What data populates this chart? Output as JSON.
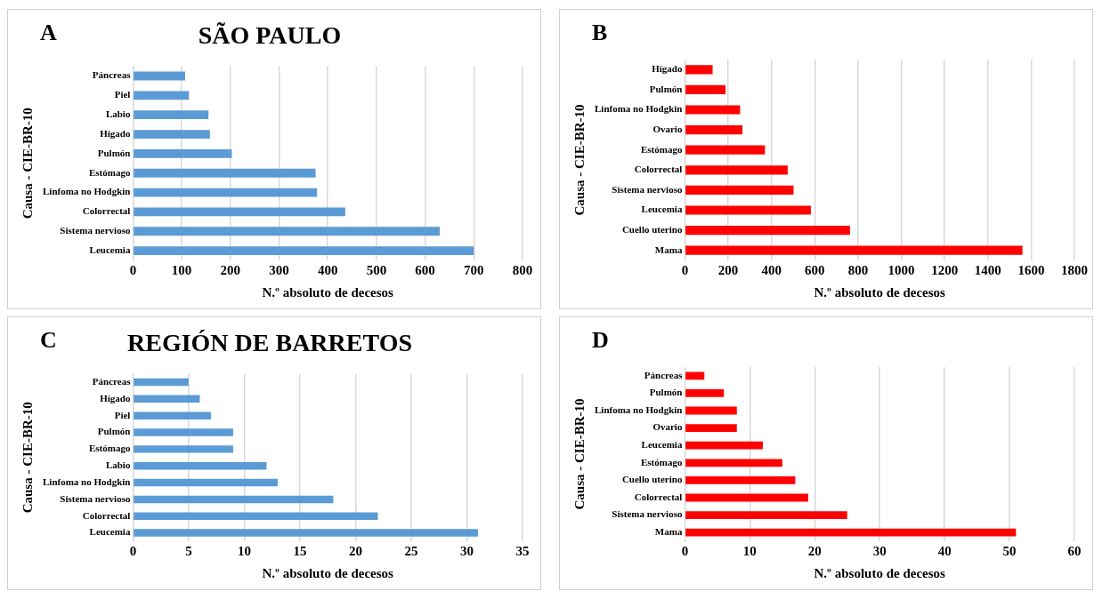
{
  "chart_data": [
    {
      "type": "bar",
      "orientation": "horizontal",
      "title": "SÃO PAULO",
      "annotations": [
        "A"
      ],
      "xlabel": "N.º absoluto de decesos",
      "ylabel": "Causa - CIE-BR-10",
      "categories": [
        "Páncreas",
        "Piel",
        "Labio",
        "Hígado",
        "Pulmón",
        "Estómago",
        "Linfoma no Hodgkin",
        "Colorrectal",
        "Sistema nervioso",
        "Leucemia"
      ],
      "values": [
        107,
        115,
        155,
        158,
        203,
        375,
        378,
        436,
        630,
        700
      ],
      "color": "#5b9bd5",
      "xlim": [
        0,
        800
      ],
      "xticks": [
        0,
        100,
        200,
        300,
        400,
        500,
        600,
        700,
        800
      ],
      "grid": "x"
    },
    {
      "type": "bar",
      "orientation": "horizontal",
      "annotations": [
        "B"
      ],
      "xlabel": "N.º absoluto de decesos",
      "ylabel": "Causa - CIE-BR-10",
      "categories": [
        "Hígado",
        "Pulmón",
        "Linfoma no Hodgkin",
        "Ovario",
        "Estómago",
        "Colorrectal",
        "Sistema nervioso",
        "Leucemia",
        "Cuello uterino",
        "Mama"
      ],
      "values": [
        128,
        188,
        255,
        266,
        370,
        475,
        502,
        582,
        763,
        1560
      ],
      "color": "#ff0000",
      "xlim": [
        0,
        1800
      ],
      "xticks": [
        0,
        200,
        400,
        600,
        800,
        1000,
        1200,
        1400,
        1600,
        1800
      ],
      "grid": "x"
    },
    {
      "type": "bar",
      "orientation": "horizontal",
      "title": "REGIÓN DE BARRETOS",
      "annotations": [
        "C"
      ],
      "xlabel": "N.º absoluto de decesos",
      "ylabel": "Causa - CIE-BR-10",
      "categories": [
        "Páncreas",
        "Hígado",
        "Piel",
        "Pulmón",
        "Estómago",
        "Labio",
        "Linfoma no Hodgkin",
        "Sistema nervioso",
        "Colorrectal",
        "Leucemia"
      ],
      "values": [
        5,
        6,
        7,
        9,
        9,
        12,
        13,
        18,
        22,
        31
      ],
      "color": "#5b9bd5",
      "xlim": [
        0,
        35
      ],
      "xticks": [
        0,
        5,
        10,
        15,
        20,
        25,
        30,
        35
      ],
      "grid": "x"
    },
    {
      "type": "bar",
      "orientation": "horizontal",
      "annotations": [
        "D"
      ],
      "xlabel": "N.º absoluto de decesos",
      "ylabel": "Causa - CIE-BR-10",
      "categories": [
        "Páncreas",
        "Pulmón",
        "Linfoma no Hodgkin",
        "Ovario",
        "Leucemia",
        "Estómago",
        "Cuello uterino",
        "Colorrectal",
        "Sistema nervioso",
        "Mama"
      ],
      "values": [
        3,
        6,
        8,
        8,
        12,
        15,
        17,
        19,
        25,
        51
      ],
      "color": "#ff0000",
      "xlim": [
        0,
        60
      ],
      "xticks": [
        0,
        10,
        20,
        30,
        40,
        50,
        60
      ],
      "grid": "x"
    }
  ]
}
